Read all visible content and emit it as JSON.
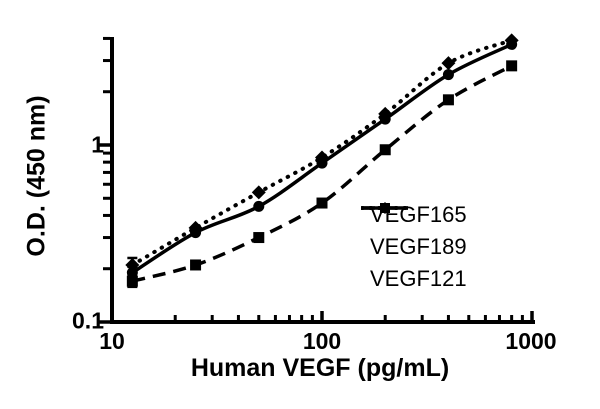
{
  "chart_data": {
    "type": "line",
    "title": "",
    "xlabel": "Human VEGF (pg/mL)",
    "ylabel": "O.D. (450 nm)",
    "xscale": "log",
    "yscale": "log",
    "xlim": [
      10,
      1000
    ],
    "ylim": [
      0.1,
      4
    ],
    "grid": false,
    "legend_position": "inside-bottom-right",
    "x_major_ticks": [
      10,
      100,
      1000
    ],
    "x_tick_labels": [
      "10",
      "100",
      "1000"
    ],
    "y_major_ticks": [
      0.1,
      1
    ],
    "y_tick_labels": [
      "0.1",
      "1"
    ],
    "x": [
      12.5,
      25,
      50,
      100,
      200,
      400,
      800
    ],
    "series": [
      {
        "name": "VEGF165",
        "marker": "circle",
        "line": "solid",
        "color": "#000000",
        "values": [
          0.19,
          0.32,
          0.45,
          0.79,
          1.4,
          2.5,
          3.7
        ],
        "error_first": 0.015
      },
      {
        "name": "VEGF189",
        "marker": "square",
        "line": "dashed",
        "color": "#000000",
        "values": [
          0.17,
          0.21,
          0.3,
          0.47,
          0.94,
          1.8,
          2.8
        ],
        "error_first": 0.012
      },
      {
        "name": "VEGF121",
        "marker": "diamond",
        "line": "dotted",
        "color": "#000000",
        "values": [
          0.21,
          0.34,
          0.54,
          0.85,
          1.5,
          2.9,
          3.9
        ],
        "error_first": 0.02
      }
    ],
    "colors": {
      "foreground": "#000000",
      "background": "#ffffff"
    }
  }
}
